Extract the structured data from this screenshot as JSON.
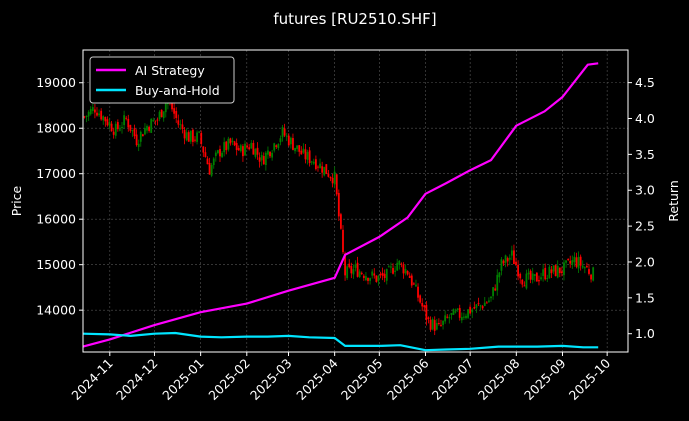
{
  "chart_data": {
    "type": "candlestick+line",
    "title": "futures [RU2510.SHF]",
    "ylabel_left": "Price",
    "ylabel_right": "Return",
    "x_range": [
      "2024-10-14",
      "2025-10-15"
    ],
    "ylim_left": [
      13080,
      19720
    ],
    "ylim_right": [
      0.745,
      4.955
    ],
    "x_ticks": [
      "2024-11",
      "2024-12",
      "2025-01",
      "2025-02",
      "2025-03",
      "2025-04",
      "2025-05",
      "2025-06",
      "2025-07",
      "2025-08",
      "2025-09",
      "2025-10"
    ],
    "x_tick_dates": [
      "2024-11-01",
      "2024-12-01",
      "2025-01-01",
      "2025-02-01",
      "2025-03-01",
      "2025-04-01",
      "2025-05-01",
      "2025-06-01",
      "2025-07-01",
      "2025-08-01",
      "2025-09-01",
      "2025-10-01"
    ],
    "y_ticks_left": [
      14000,
      15000,
      16000,
      17000,
      18000,
      19000
    ],
    "y_ticks_right": [
      1.0,
      1.5,
      2.0,
      2.5,
      3.0,
      3.5,
      4.0,
      4.5
    ],
    "grid": true,
    "legend_position": "top-left",
    "colors": {
      "up": "#008000",
      "down": "#ff0000",
      "ai": "#ff00ff",
      "bh": "#00e5ff",
      "grid": "#555555",
      "axis": "#ffffff"
    },
    "price_series": [
      {
        "date": "2024-10-15",
        "price": 18250
      },
      {
        "date": "2024-10-22",
        "price": 18450
      },
      {
        "date": "2024-10-29",
        "price": 18200
      },
      {
        "date": "2024-11-05",
        "price": 17950
      },
      {
        "date": "2024-11-12",
        "price": 18200
      },
      {
        "date": "2024-11-19",
        "price": 17750
      },
      {
        "date": "2024-11-26",
        "price": 18050
      },
      {
        "date": "2024-12-03",
        "price": 18200
      },
      {
        "date": "2024-12-10",
        "price": 18650
      },
      {
        "date": "2024-12-17",
        "price": 18100
      },
      {
        "date": "2024-12-24",
        "price": 17800
      },
      {
        "date": "2024-12-31",
        "price": 17800
      },
      {
        "date": "2025-01-07",
        "price": 17100
      },
      {
        "date": "2025-01-14",
        "price": 17500
      },
      {
        "date": "2025-01-21",
        "price": 17650
      },
      {
        "date": "2025-01-28",
        "price": 17500
      },
      {
        "date": "2025-02-04",
        "price": 17650
      },
      {
        "date": "2025-02-11",
        "price": 17300
      },
      {
        "date": "2025-02-18",
        "price": 17600
      },
      {
        "date": "2025-02-25",
        "price": 17900
      },
      {
        "date": "2025-03-04",
        "price": 17650
      },
      {
        "date": "2025-03-11",
        "price": 17400
      },
      {
        "date": "2025-03-18",
        "price": 17300
      },
      {
        "date": "2025-03-25",
        "price": 17100
      },
      {
        "date": "2025-04-01",
        "price": 16900
      },
      {
        "date": "2025-04-08",
        "price": 14800
      },
      {
        "date": "2025-04-15",
        "price": 14900
      },
      {
        "date": "2025-04-22",
        "price": 14800
      },
      {
        "date": "2025-04-29",
        "price": 14700
      },
      {
        "date": "2025-05-06",
        "price": 14750
      },
      {
        "date": "2025-05-13",
        "price": 15050
      },
      {
        "date": "2025-05-20",
        "price": 14850
      },
      {
        "date": "2025-05-27",
        "price": 14300
      },
      {
        "date": "2025-06-03",
        "price": 13750
      },
      {
        "date": "2025-06-10",
        "price": 13600
      },
      {
        "date": "2025-06-17",
        "price": 13850
      },
      {
        "date": "2025-06-24",
        "price": 13900
      },
      {
        "date": "2025-07-01",
        "price": 14000
      },
      {
        "date": "2025-07-08",
        "price": 14100
      },
      {
        "date": "2025-07-15",
        "price": 14250
      },
      {
        "date": "2025-07-22",
        "price": 15000
      },
      {
        "date": "2025-07-29",
        "price": 15200
      },
      {
        "date": "2025-08-05",
        "price": 14700
      },
      {
        "date": "2025-08-12",
        "price": 14650
      },
      {
        "date": "2025-08-19",
        "price": 14800
      },
      {
        "date": "2025-08-26",
        "price": 14850
      },
      {
        "date": "2025-09-02",
        "price": 14900
      },
      {
        "date": "2025-09-09",
        "price": 15100
      },
      {
        "date": "2025-09-16",
        "price": 14950
      },
      {
        "date": "2025-09-23",
        "price": 14750
      }
    ],
    "series": [
      {
        "name": "AI Strategy",
        "points": [
          {
            "date": "2024-10-14",
            "value": 0.82
          },
          {
            "date": "2024-11-01",
            "value": 0.92
          },
          {
            "date": "2024-12-01",
            "value": 1.12
          },
          {
            "date": "2025-01-01",
            "value": 1.3
          },
          {
            "date": "2025-02-01",
            "value": 1.42
          },
          {
            "date": "2025-03-01",
            "value": 1.6
          },
          {
            "date": "2025-04-01",
            "value": 1.78
          },
          {
            "date": "2025-04-08",
            "value": 2.1
          },
          {
            "date": "2025-05-01",
            "value": 2.35
          },
          {
            "date": "2025-05-20",
            "value": 2.62
          },
          {
            "date": "2025-06-01",
            "value": 2.95
          },
          {
            "date": "2025-06-15",
            "value": 3.1
          },
          {
            "date": "2025-07-01",
            "value": 3.28
          },
          {
            "date": "2025-07-15",
            "value": 3.42
          },
          {
            "date": "2025-08-01",
            "value": 3.9
          },
          {
            "date": "2025-08-20",
            "value": 4.1
          },
          {
            "date": "2025-09-01",
            "value": 4.3
          },
          {
            "date": "2025-09-18",
            "value": 4.75
          },
          {
            "date": "2025-09-25",
            "value": 4.77
          }
        ]
      },
      {
        "name": "Buy-and-Hold",
        "points": [
          {
            "date": "2024-10-14",
            "value": 1.0
          },
          {
            "date": "2024-11-01",
            "value": 0.99
          },
          {
            "date": "2024-11-15",
            "value": 0.97
          },
          {
            "date": "2024-12-01",
            "value": 1.0
          },
          {
            "date": "2024-12-15",
            "value": 1.01
          },
          {
            "date": "2025-01-01",
            "value": 0.96
          },
          {
            "date": "2025-01-15",
            "value": 0.95
          },
          {
            "date": "2025-02-01",
            "value": 0.96
          },
          {
            "date": "2025-02-15",
            "value": 0.96
          },
          {
            "date": "2025-03-01",
            "value": 0.97
          },
          {
            "date": "2025-03-15",
            "value": 0.95
          },
          {
            "date": "2025-04-01",
            "value": 0.94
          },
          {
            "date": "2025-04-08",
            "value": 0.83
          },
          {
            "date": "2025-05-01",
            "value": 0.83
          },
          {
            "date": "2025-05-15",
            "value": 0.84
          },
          {
            "date": "2025-06-01",
            "value": 0.77
          },
          {
            "date": "2025-06-15",
            "value": 0.78
          },
          {
            "date": "2025-07-01",
            "value": 0.79
          },
          {
            "date": "2025-07-20",
            "value": 0.82
          },
          {
            "date": "2025-08-01",
            "value": 0.82
          },
          {
            "date": "2025-08-15",
            "value": 0.82
          },
          {
            "date": "2025-09-01",
            "value": 0.83
          },
          {
            "date": "2025-09-15",
            "value": 0.81
          },
          {
            "date": "2025-09-25",
            "value": 0.81
          }
        ]
      }
    ]
  }
}
